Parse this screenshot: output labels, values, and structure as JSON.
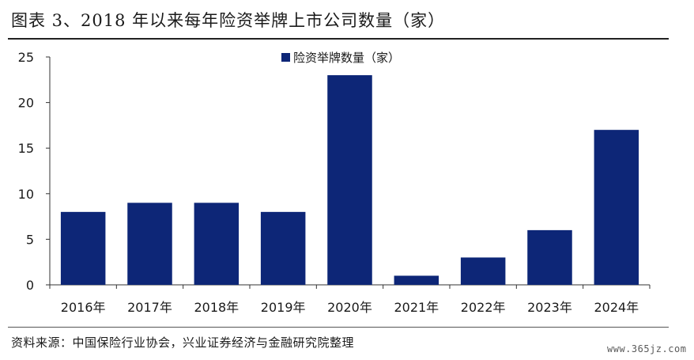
{
  "header": {
    "title": "图表 3、2018 年以来每年险资举牌上市公司数量（家）"
  },
  "footer": {
    "source": "资料来源：中国保险行业协会，兴业证券经济与金融研究院整理",
    "watermark": "www.365jz.com"
  },
  "colors": {
    "bar": "#0d2677",
    "axis": "#333333",
    "text": "#1a1a1a"
  },
  "chart_data": {
    "type": "bar",
    "title": "图表 3、2018 年以来每年险资举牌上市公司数量（家）",
    "xlabel": "",
    "ylabel": "",
    "categories": [
      "2016年",
      "2017年",
      "2018年",
      "2019年",
      "2020年",
      "2021年",
      "2022年",
      "2023年",
      "2024年"
    ],
    "series": [
      {
        "name": "险资举牌数量（家）",
        "values": [
          8,
          9,
          9,
          8,
          23,
          1,
          3,
          6,
          17
        ]
      }
    ],
    "ylim": [
      0,
      25
    ],
    "yticks": [
      "0",
      "5",
      "10",
      "15",
      "20",
      "25"
    ],
    "grid": false,
    "legend": "top-center"
  }
}
